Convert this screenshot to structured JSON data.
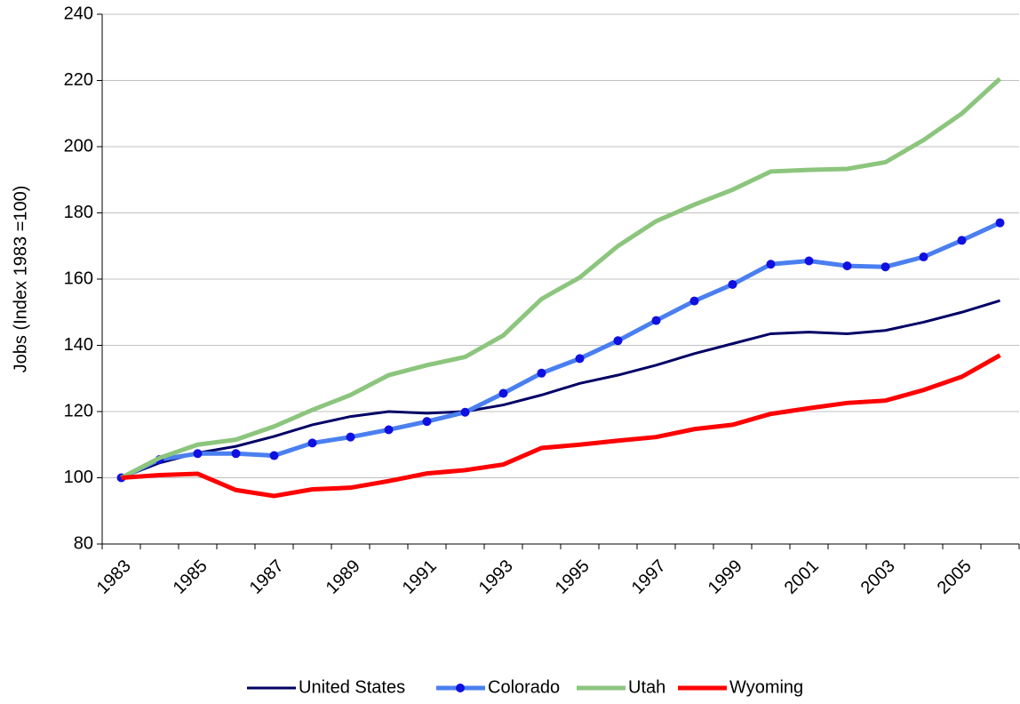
{
  "chart_data": {
    "type": "line",
    "y_label": "Jobs (Index 1983 =100)",
    "categories": [
      "1983",
      null,
      "1985",
      null,
      "1987",
      null,
      "1989",
      null,
      "1991",
      null,
      "1993",
      null,
      "1995",
      null,
      "1997",
      null,
      "1999",
      null,
      "2001",
      null,
      "2003",
      null,
      "2005",
      null
    ],
    "series": [
      {
        "name": "United States",
        "color": "#000066",
        "markers": false,
        "values": [
          100,
          104.5,
          107.5,
          109.5,
          112.5,
          116,
          118.5,
          120,
          119.5,
          120,
          122,
          125,
          128.5,
          131,
          134,
          137.5,
          140.5,
          143.5,
          144,
          143.5,
          144.5,
          147,
          150,
          153.5
        ]
      },
      {
        "name": "Colorado",
        "color": "#4a7ff0",
        "markers": true,
        "values": [
          100,
          105.5,
          107.3,
          107.3,
          106.7,
          110.5,
          112.3,
          114.5,
          117,
          119.8,
          125.5,
          131.6,
          136,
          141.4,
          147.5,
          153.4,
          158.4,
          164.5,
          165.5,
          164,
          163.7,
          166.7,
          171.7,
          177
        ]
      },
      {
        "name": "Utah",
        "color": "#8cc57d",
        "markers": false,
        "values": [
          100,
          106,
          110,
          111.5,
          115.5,
          120.5,
          125,
          131,
          134,
          136.5,
          143,
          154,
          160.5,
          170,
          177.5,
          182.5,
          187,
          192.5,
          193,
          193.3,
          195.3,
          202,
          210,
          220.5
        ]
      },
      {
        "name": "Wyoming",
        "color": "#ff0000",
        "markers": false,
        "values": [
          100,
          100.8,
          101.2,
          96.3,
          94.5,
          96.5,
          97,
          99,
          101.3,
          102.3,
          104,
          109,
          110,
          111.2,
          112.3,
          114.7,
          116,
          119.3,
          121,
          122.6,
          123.3,
          126.5,
          130.5,
          137
        ]
      }
    ],
    "ylim": [
      80,
      240
    ],
    "yticks": [
      80,
      100,
      120,
      140,
      160,
      180,
      200,
      220,
      240
    ],
    "grid": true,
    "legend": "bottom"
  }
}
